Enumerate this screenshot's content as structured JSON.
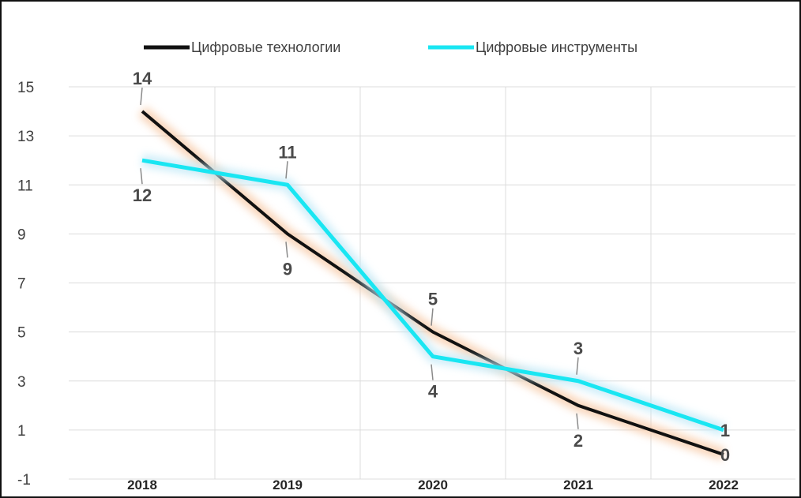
{
  "chart_data": {
    "type": "line",
    "title": "",
    "xlabel": "",
    "ylabel": "",
    "categories": [
      "2018",
      "2019",
      "2020",
      "2021",
      "2022"
    ],
    "ylim": [
      -1,
      15
    ],
    "yticks": [
      -1,
      1,
      3,
      5,
      7,
      9,
      11,
      13,
      15
    ],
    "grid": true,
    "legend_position": "top",
    "series": [
      {
        "name": "Цифровые технологии",
        "values": [
          14,
          9,
          5,
          2,
          0
        ],
        "color": "#111111",
        "glow": "#f7c9a6"
      },
      {
        "name": "Цифровые инструменты",
        "values": [
          12,
          11,
          4,
          3,
          1
        ],
        "color": "#19e6f2",
        "glow": "#bfe8f7"
      }
    ]
  }
}
